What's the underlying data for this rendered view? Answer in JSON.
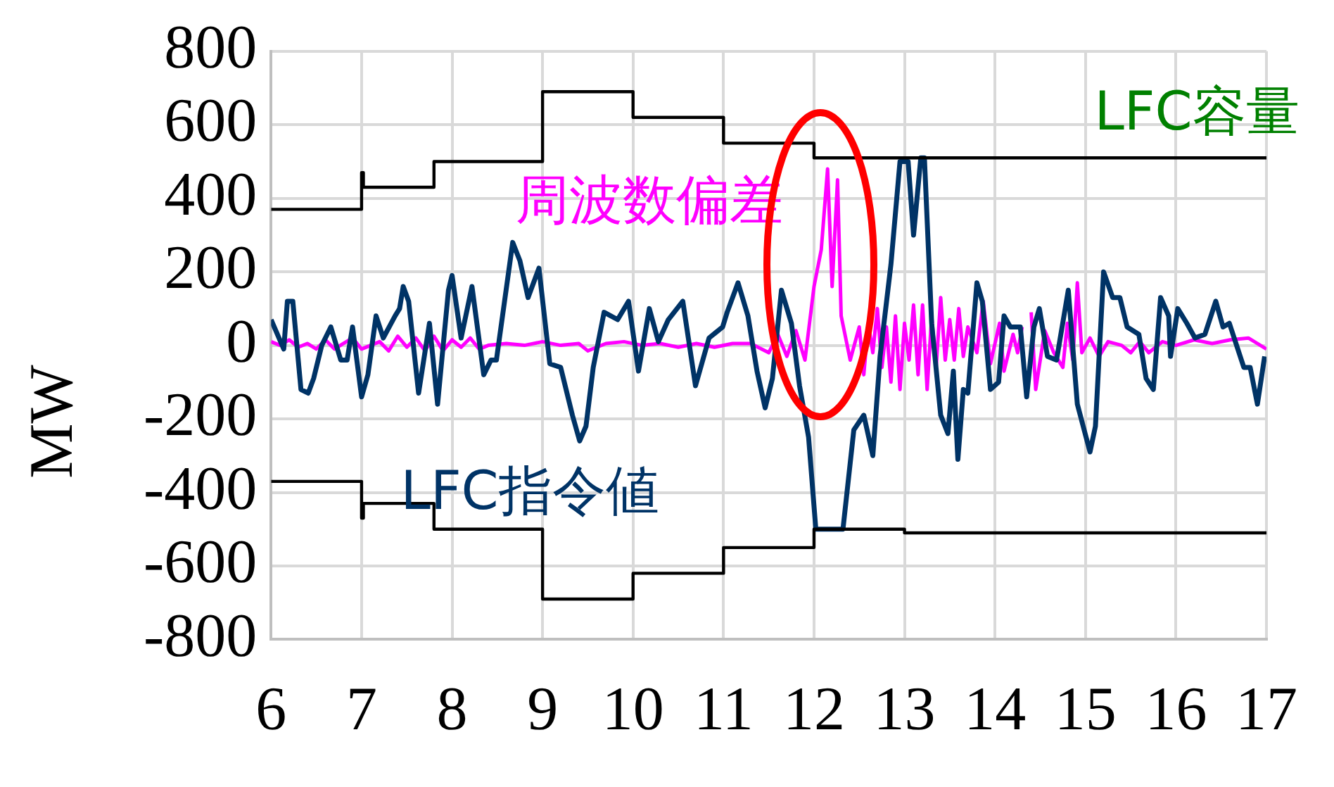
{
  "chart_data": {
    "type": "line",
    "ylabel": "MW",
    "xlim": [
      6,
      17
    ],
    "xticks": [
      6,
      7,
      8,
      9,
      10,
      11,
      12,
      13,
      14,
      15,
      16,
      17
    ],
    "ylim": [
      -800,
      800
    ],
    "yticks": [
      -800,
      -600,
      -400,
      -200,
      0,
      200,
      400,
      600,
      800
    ],
    "grid": true,
    "marker": "none",
    "series": [
      {
        "name": "LFC容量",
        "type": "step",
        "color": "#000000",
        "x": [
          6,
          7,
          7.02,
          7.8,
          9,
          10,
          11,
          12,
          17
        ],
        "values": [
          370,
          470,
          430,
          500,
          690,
          620,
          550,
          510,
          510
        ]
      },
      {
        "type": "step",
        "color": "#000000",
        "x": [
          6,
          7,
          7.02,
          7.8,
          9,
          10,
          11,
          12,
          13,
          17
        ],
        "values": [
          -370,
          -470,
          -430,
          -500,
          -690,
          -620,
          -550,
          -500,
          -510,
          -510
        ]
      },
      {
        "name": "LFC指令値",
        "type": "line",
        "color": "#003366",
        "x": [
          6.0,
          6.14,
          6.18,
          6.24,
          6.33,
          6.41,
          6.47,
          6.56,
          6.66,
          6.77,
          6.84,
          6.9,
          7.0,
          7.07,
          7.16,
          7.24,
          7.37,
          7.42,
          7.46,
          7.52,
          7.63,
          7.75,
          7.84,
          7.96,
          8.0,
          8.1,
          8.22,
          8.35,
          8.43,
          8.49,
          8.67,
          8.75,
          8.84,
          8.96,
          9.08,
          9.2,
          9.33,
          9.41,
          9.48,
          9.56,
          9.68,
          9.83,
          9.95,
          10.06,
          10.18,
          10.28,
          10.39,
          10.55,
          10.69,
          10.84,
          10.99,
          11.04,
          11.16,
          11.27,
          11.37,
          11.46,
          11.54,
          11.64,
          11.75,
          11.84,
          11.94,
          12.02,
          12.32,
          12.44,
          12.55,
          12.65,
          12.73,
          12.85,
          12.95,
          13.04,
          13.1,
          13.18,
          13.22,
          13.3,
          13.4,
          13.48,
          13.54,
          13.59,
          13.65,
          13.7,
          13.8,
          13.86,
          13.95,
          14.04,
          14.1,
          14.17,
          14.28,
          14.35,
          14.43,
          14.49,
          14.58,
          14.68,
          14.81,
          14.91,
          15.05,
          15.11,
          15.2,
          15.3,
          15.38,
          15.46,
          15.59,
          15.67,
          15.75,
          15.83,
          15.92,
          15.94,
          16.02,
          16.12,
          16.21,
          16.32,
          16.44,
          16.52,
          16.59,
          16.67,
          16.75,
          16.82,
          16.9,
          16.98
        ],
        "values": [
          70,
          -10,
          120,
          120,
          -120,
          -130,
          -90,
          0,
          50,
          -40,
          -40,
          50,
          -140,
          -80,
          80,
          20,
          80,
          100,
          160,
          120,
          -130,
          60,
          -160,
          150,
          190,
          20,
          160,
          -80,
          -40,
          -40,
          280,
          230,
          130,
          210,
          -50,
          -60,
          -190,
          -260,
          -220,
          -60,
          90,
          70,
          120,
          -70,
          100,
          10,
          70,
          120,
          -110,
          20,
          50,
          90,
          170,
          80,
          -70,
          -170,
          -90,
          150,
          60,
          -110,
          -250,
          -500,
          -500,
          -230,
          -190,
          -300,
          -30,
          220,
          500,
          500,
          300,
          510,
          510,
          60,
          -190,
          -240,
          -70,
          -310,
          -120,
          -130,
          170,
          120,
          -120,
          -100,
          80,
          50,
          50,
          -140,
          50,
          100,
          -30,
          -40,
          150,
          -160,
          -290,
          -220,
          200,
          130,
          130,
          50,
          30,
          -90,
          -120,
          130,
          80,
          -30,
          100,
          60,
          20,
          30,
          120,
          50,
          60,
          0,
          -60,
          -60,
          -160,
          -30
        ]
      },
      {
        "name": "周波数偏差",
        "type": "line",
        "color": "#ff00ff",
        "x": [
          6.0,
          6.1,
          6.2,
          6.3,
          6.4,
          6.5,
          6.6,
          6.7,
          6.8,
          6.9,
          7.0,
          7.2,
          7.3,
          7.4,
          7.5,
          7.6,
          7.7,
          7.8,
          7.9,
          8.0,
          8.1,
          8.2,
          8.3,
          8.4,
          8.6,
          8.8,
          9.0,
          9.2,
          9.4,
          9.5,
          9.7,
          9.9,
          10.1,
          10.3,
          10.5,
          10.7,
          10.9,
          11.1,
          11.3,
          11.5,
          11.6,
          11.7,
          11.8,
          11.9,
          12.0,
          12.08,
          12.15,
          12.2,
          12.26,
          12.3,
          12.4,
          12.5,
          12.55,
          12.6,
          12.65,
          12.7,
          12.75,
          12.8,
          12.85,
          12.9,
          12.95,
          13.0,
          13.05,
          13.1,
          13.15,
          13.2,
          13.25,
          13.3,
          13.35,
          13.4,
          13.45,
          13.5,
          13.55,
          13.6,
          13.65,
          13.7,
          13.8,
          13.87,
          13.95,
          14.05,
          14.1,
          14.2,
          14.25,
          14.3,
          14.35,
          14.4,
          14.45,
          14.55,
          14.65,
          14.75,
          14.8,
          14.86,
          14.91,
          14.96,
          15.05,
          15.15,
          15.25,
          15.4,
          15.5,
          15.6,
          15.7,
          15.85,
          16.0,
          16.2,
          16.4,
          16.6,
          16.8,
          17.0
        ],
        "values": [
          10,
          0,
          15,
          -5,
          5,
          -10,
          15,
          -10,
          5,
          20,
          -10,
          10,
          -15,
          25,
          -5,
          20,
          -15,
          25,
          -15,
          15,
          -5,
          20,
          -10,
          0,
          5,
          0,
          10,
          0,
          5,
          -15,
          5,
          10,
          0,
          5,
          -5,
          5,
          -5,
          5,
          5,
          -20,
          30,
          -30,
          40,
          -40,
          160,
          260,
          480,
          160,
          450,
          80,
          -40,
          50,
          -80,
          60,
          -20,
          100,
          -60,
          50,
          -100,
          80,
          -120,
          60,
          -40,
          110,
          -80,
          110,
          -120,
          80,
          -60,
          130,
          -40,
          70,
          -40,
          100,
          -30,
          50,
          -20,
          120,
          -50,
          60,
          -70,
          30,
          -20,
          50,
          null,
          90,
          -120,
          40,
          -20,
          -60,
          60,
          -40,
          170,
          -20,
          20,
          -30,
          10,
          0,
          -20,
          10,
          -20,
          10,
          0,
          15,
          5,
          15,
          20,
          -10
        ]
      }
    ]
  }
}
